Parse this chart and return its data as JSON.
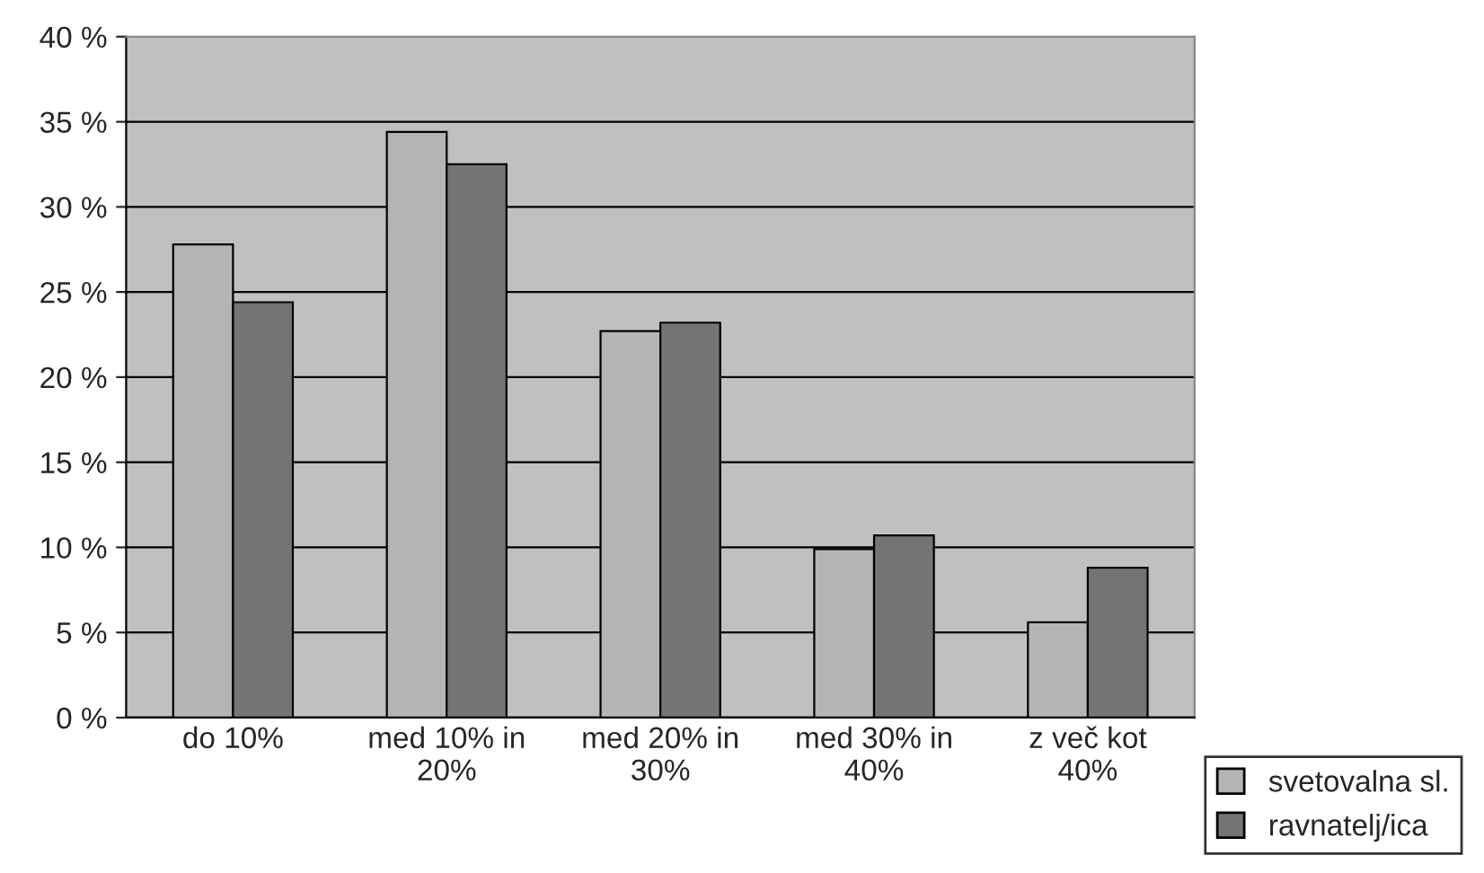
{
  "chart_data": {
    "type": "bar",
    "categories": [
      "do 10%",
      "med 10% in\n20%",
      "med 20% in\n30%",
      "med 30% in\n40%",
      "z več kot\n40%"
    ],
    "series": [
      {
        "name": "svetovalna sl.",
        "color": "#b4b4b4",
        "values": [
          27.8,
          34.4,
          22.7,
          9.9,
          5.6
        ]
      },
      {
        "name": "ravnatelj/ica",
        "color": "#747474",
        "values": [
          24.4,
          32.5,
          23.2,
          10.7,
          8.8
        ]
      }
    ],
    "ylim": [
      0,
      40
    ],
    "yticks": [
      {
        "value": 0,
        "label": "0 %"
      },
      {
        "value": 5,
        "label": "5 %"
      },
      {
        "value": 10,
        "label": "10 %"
      },
      {
        "value": 15,
        "label": "15 %"
      },
      {
        "value": 20,
        "label": "20 %"
      },
      {
        "value": 25,
        "label": "25 %"
      },
      {
        "value": 30,
        "label": "30 %"
      },
      {
        "value": 35,
        "label": "35 %"
      },
      {
        "value": 40,
        "label": "40 %"
      }
    ],
    "grid": "y",
    "legend": "bottom right"
  }
}
